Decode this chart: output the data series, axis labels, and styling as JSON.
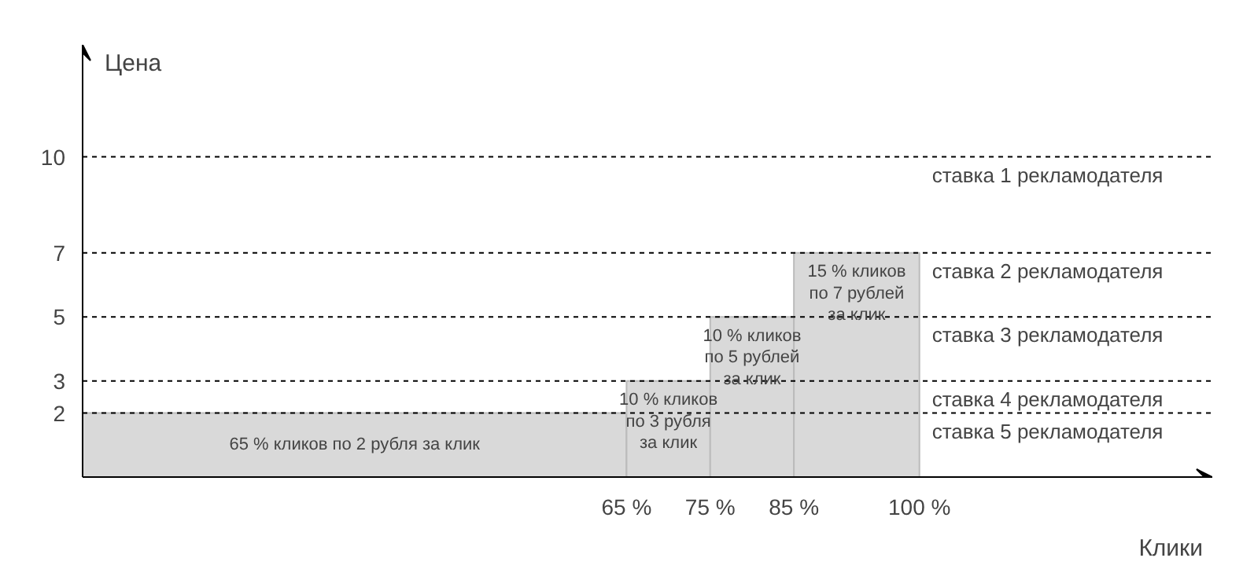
{
  "chart_data": {
    "type": "histogram",
    "xlabel": "Клики",
    "ylabel": "Цена",
    "bins": [
      0,
      65,
      75,
      85,
      100
    ],
    "values": [
      2,
      3,
      5,
      7
    ],
    "color": "#d9d9d9",
    "xlim": [
      0,
      135
    ],
    "ylim": [
      0,
      13.5
    ],
    "xticks": [
      {
        "value": 65,
        "label": "65 %"
      },
      {
        "value": 75,
        "label": "75 %"
      },
      {
        "value": 85,
        "label": "85 %"
      },
      {
        "value": 100,
        "label": "100 %"
      }
    ],
    "yticks": [
      2,
      3,
      5,
      7,
      10
    ],
    "ref_lines": [
      {
        "axis": "y",
        "value": 10,
        "label": "ставка 1 рекламодателя",
        "line_style": "dashed",
        "color": "#000000"
      },
      {
        "axis": "y",
        "value": 7,
        "label": "ставка 2 рекламодателя",
        "line_style": "dashed",
        "color": "#000000"
      },
      {
        "axis": "y",
        "value": 5,
        "label": "ставка 3 рекламодателя",
        "line_style": "dashed",
        "color": "#000000"
      },
      {
        "axis": "y",
        "value": 3,
        "label": "ставка 4 рекламодателя",
        "line_style": "dashed",
        "color": "#000000"
      },
      {
        "axis": "y",
        "value": 2,
        "label": "ставка 5 рекламодателя",
        "line_style": "dashed",
        "color": "#000000"
      }
    ],
    "annotations": [
      "65 % кликов по 2 рубля за клик",
      "10 % кликов\nпо 3 рубля\nза клик",
      "10 % кликов\nпо 5 рублей\nза клик",
      "15 % кликов\nпо 7 рублей\nза клик"
    ],
    "grid": false
  }
}
